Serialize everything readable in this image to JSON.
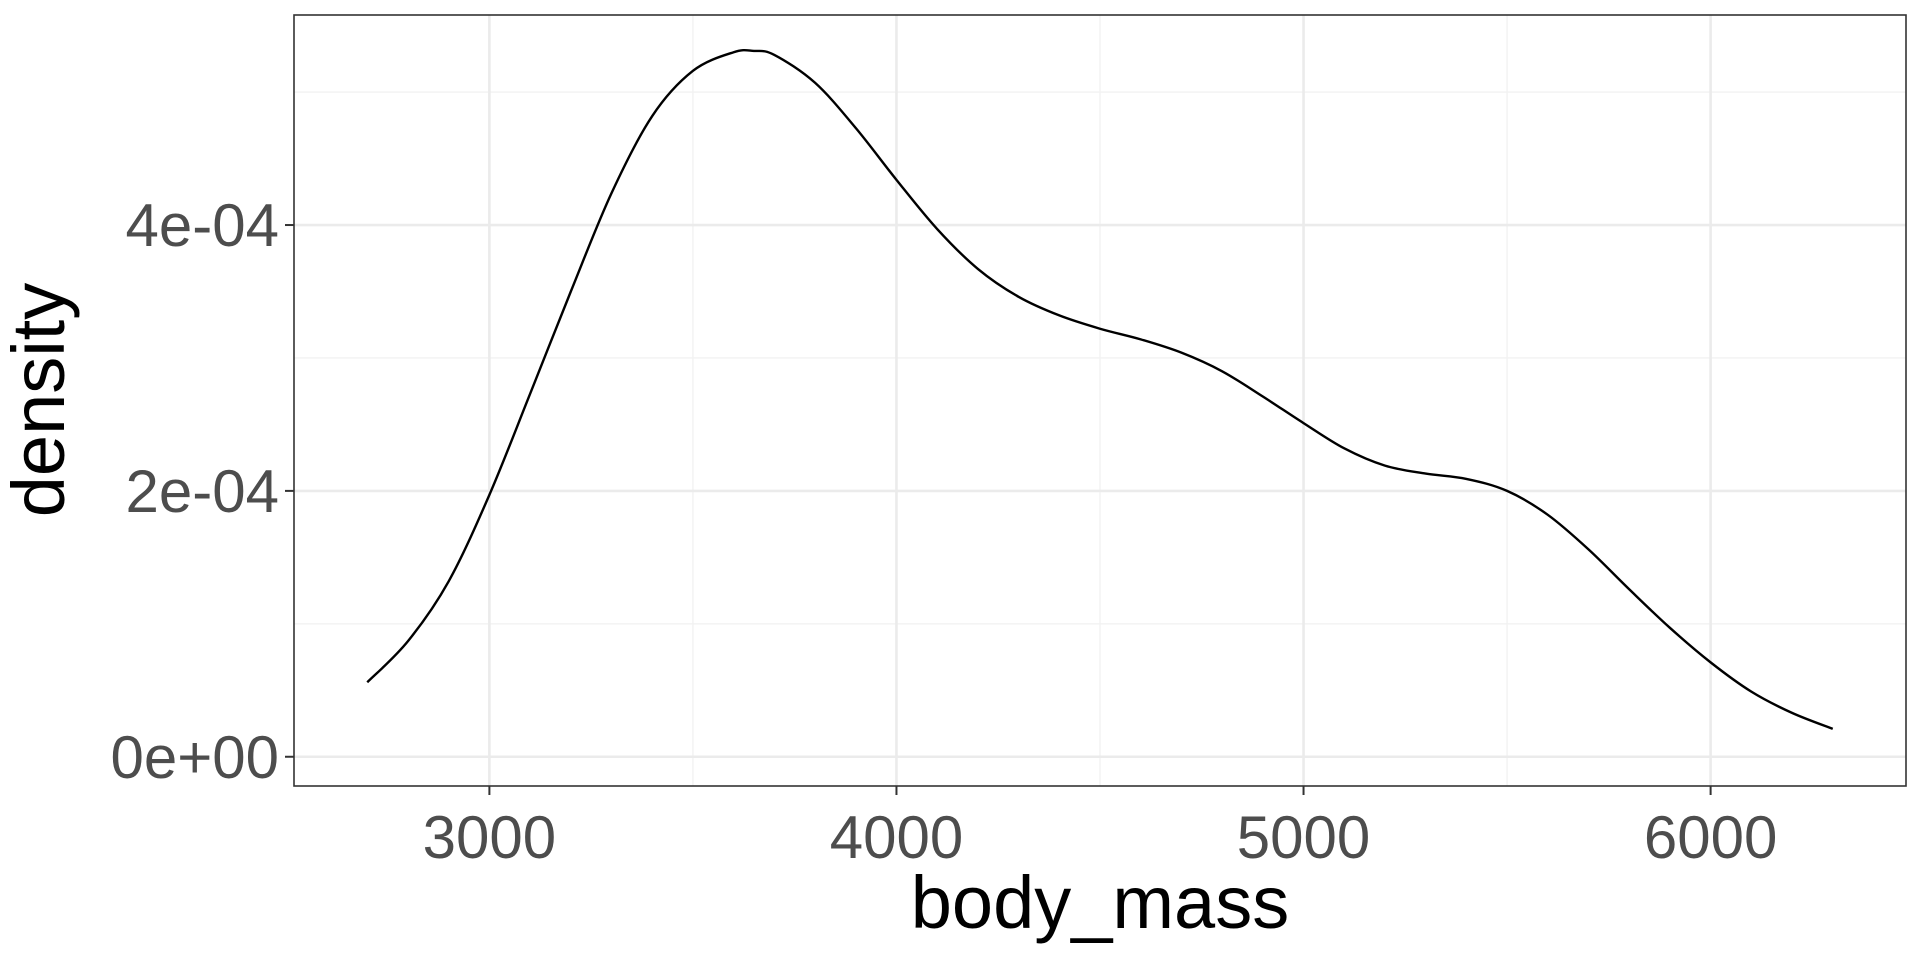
{
  "chart_data": {
    "type": "line",
    "title": "",
    "xlabel": "body_mass",
    "ylabel": "density",
    "xlim": [
      2520,
      6480
    ],
    "ylim": [
      -2.2e-05,
      0.000558
    ],
    "x_ticks": [
      3000,
      4000,
      5000,
      6000
    ],
    "x_tick_labels": [
      "3000",
      "4000",
      "5000",
      "6000"
    ],
    "x_minor_ticks": [
      2500,
      3500,
      4500,
      5500,
      6500
    ],
    "y_ticks": [
      0,
      0.0002,
      0.0004
    ],
    "y_tick_labels": [
      "0e+00",
      "2e-04",
      "4e-04"
    ],
    "y_minor_ticks": [
      0.0001,
      0.0003,
      0.0005
    ],
    "grid": true,
    "legend": "none",
    "series": [
      {
        "color": "#000000",
        "x": [
          2700,
          2800,
          2900,
          3000,
          3100,
          3200,
          3300,
          3400,
          3500,
          3600,
          3650,
          3700,
          3800,
          3900,
          4000,
          4100,
          4200,
          4300,
          4400,
          4500,
          4600,
          4700,
          4800,
          4900,
          5000,
          5100,
          5200,
          5300,
          5400,
          5500,
          5600,
          5700,
          5800,
          5900,
          6000,
          6100,
          6200,
          6300
        ],
        "y": [
          5.6e-05,
          8.7e-05,
          0.000132,
          0.000197,
          0.000273,
          0.00035,
          0.000424,
          0.000482,
          0.000516,
          0.00053,
          0.000531,
          0.000528,
          0.000507,
          0.000473,
          0.000434,
          0.000397,
          0.000367,
          0.000346,
          0.000332,
          0.000322,
          0.000314,
          0.000304,
          0.00029,
          0.000271,
          0.000251,
          0.000232,
          0.000219,
          0.000213,
          0.000209,
          0.0002,
          0.000182,
          0.000156,
          0.000126,
          9.7e-05,
          7.1e-05,
          4.9e-05,
          3.3e-05,
          2.1e-05
        ]
      }
    ]
  }
}
